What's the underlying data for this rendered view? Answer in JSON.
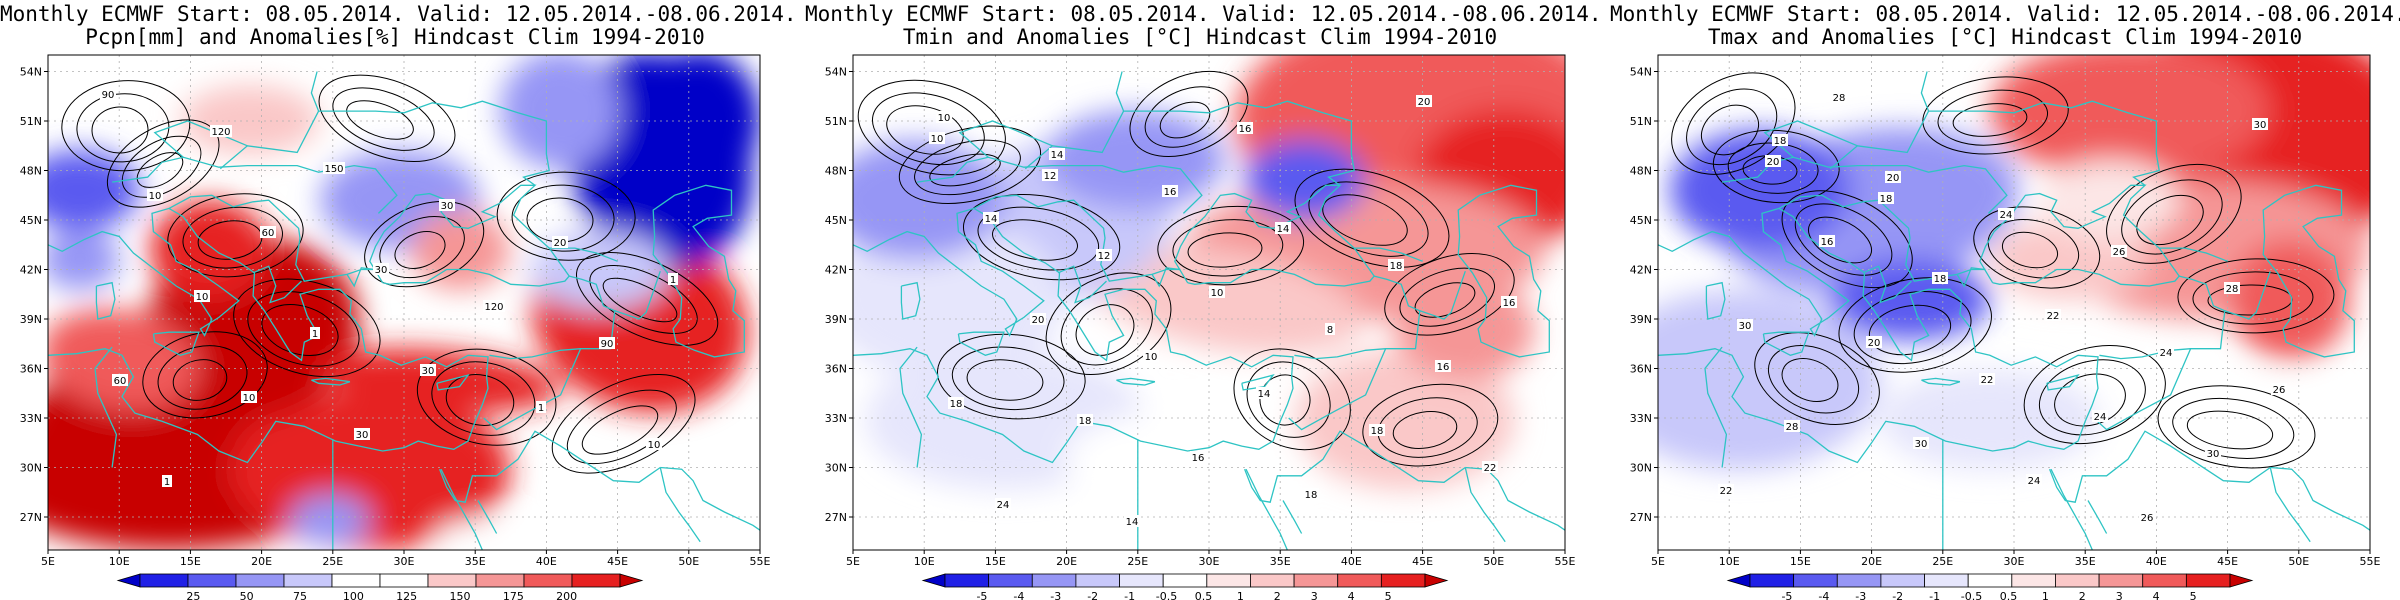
{
  "panels": [
    {
      "title_line1": "Monthly ECMWF Start: 08.05.2014. Valid: 12.05.2014.-08.06.2014.",
      "title_line2": "Pcpn[mm] and Anomalies[%] Hindcast Clim 1994-2010",
      "colorbar": {
        "labels": [
          "25",
          "50",
          "75",
          "100",
          "125",
          "150",
          "175",
          "200"
        ],
        "colors": [
          "#0000c8",
          "#2020e6",
          "#5a5af0",
          "#9696f5",
          "#c8c8fa",
          "#ffffff",
          "#ffffff",
          "#fac8c8",
          "#f59696",
          "#f05a5a",
          "#e62020",
          "#c80000"
        ]
      },
      "contour_labels": [
        "90",
        "120",
        "150",
        "30",
        "20",
        "1",
        "10",
        "60",
        "30",
        "120",
        "90",
        "60",
        "10",
        "1",
        "30",
        "1",
        "10",
        "1",
        "10",
        "30"
      ]
    },
    {
      "title_line1": "Monthly ECMWF Start: 08.05.2014. Valid: 12.05.2014.-08.06.2014.",
      "title_line2": "Tmin and Anomalies [°C] Hindcast Clim 1994-2010",
      "colorbar": {
        "labels": [
          "-5",
          "-4",
          "-3",
          "-2",
          "-1",
          "-0.5",
          "0.5",
          "1",
          "2",
          "3",
          "4",
          "5"
        ],
        "colors": [
          "#0000c8",
          "#2020e6",
          "#5a5af0",
          "#9696f5",
          "#c8c8fa",
          "#e6e6fc",
          "#ffffff",
          "#fce6e6",
          "#fac8c8",
          "#f59696",
          "#f05a5a",
          "#e62020",
          "#c80000"
        ]
      },
      "contour_labels": [
        "10",
        "14",
        "16",
        "14",
        "18",
        "16",
        "14",
        "12",
        "10",
        "8",
        "16",
        "18",
        "20",
        "10",
        "14",
        "18",
        "22",
        "24",
        "18",
        "16",
        "18",
        "20",
        "10",
        "12",
        "14",
        "16"
      ]
    },
    {
      "title_line1": "Monthly ECMWF Start: 08.05.2014. Valid: 12.05.2014.-08.06.2014.",
      "title_line2": "Tmax and Anomalies [°C] Hindcast Clim 1994-2010",
      "colorbar": {
        "labels": [
          "-5",
          "-4",
          "-3",
          "-2",
          "-1",
          "-0.5",
          "0.5",
          "1",
          "2",
          "3",
          "4",
          "5"
        ],
        "colors": [
          "#0000c8",
          "#2020e6",
          "#5a5af0",
          "#9696f5",
          "#c8c8fa",
          "#e6e6fc",
          "#ffffff",
          "#fce6e6",
          "#fac8c8",
          "#f59696",
          "#f05a5a",
          "#e62020",
          "#c80000"
        ]
      },
      "contour_labels": [
        "18",
        "20",
        "24",
        "26",
        "28",
        "30",
        "16",
        "18",
        "22",
        "24",
        "26",
        "28",
        "20",
        "22",
        "24",
        "30",
        "22",
        "28",
        "30",
        "24",
        "26",
        "30",
        "20",
        "18"
      ]
    }
  ],
  "axes": {
    "lat_labels": [
      "54N",
      "51N",
      "48N",
      "45N",
      "42N",
      "39N",
      "36N",
      "33N",
      "30N",
      "27N"
    ],
    "lon_labels": [
      "5E",
      "10E",
      "15E",
      "20E",
      "25E",
      "30E",
      "35E",
      "40E",
      "45E",
      "50E",
      "55E"
    ]
  },
  "colors": {
    "coast": "#2ec4c4",
    "contour": "#000000",
    "grid": "#b0b0b0"
  }
}
